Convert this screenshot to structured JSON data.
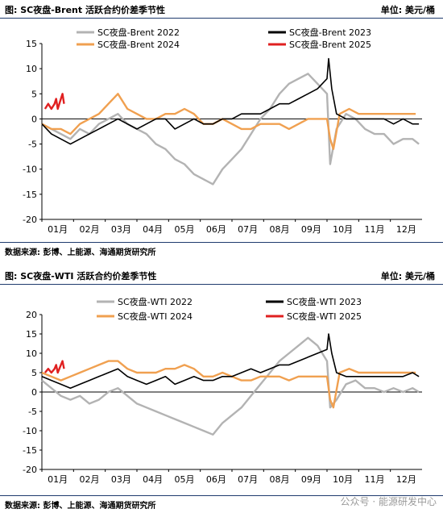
{
  "charts": [
    {
      "title": "图: SC夜盘-Brent 活跃合约价差季节性",
      "unit": "单位: 美元/桶",
      "source": "数据来源: 彭博、上能源、海通期货研究所"
    },
    {
      "title": "图: SC夜盘-WTI 活跃合约价差季节性",
      "unit": "单位: 美元/桶",
      "source": "数据来源: 彭博、上能源、海通期货研究所"
    }
  ],
  "watermark": "公众号 · 能源研发中心",
  "chart_data": [
    {
      "type": "line",
      "title": "",
      "x_labels": [
        "01月",
        "02月",
        "03月",
        "04月",
        "05月",
        "06月",
        "07月",
        "08月",
        "09月",
        "10月",
        "11月",
        "12月"
      ],
      "ylim": [
        -20,
        15
      ],
      "yticks": [
        -20,
        -15,
        -10,
        -5,
        0,
        5,
        10,
        15
      ],
      "legend": "top",
      "series": [
        {
          "name": "SC夜盘-Brent 2022",
          "color": "#b3b3b3",
          "x": [
            0,
            0.3,
            0.6,
            0.9,
            1.2,
            1.5,
            1.8,
            2.1,
            2.4,
            2.7,
            3,
            3.3,
            3.6,
            3.9,
            4.2,
            4.5,
            4.8,
            5.1,
            5.4,
            5.7,
            6,
            6.3,
            6.6,
            6.9,
            7.2,
            7.5,
            7.8,
            8.1,
            8.4,
            8.7,
            9,
            9.1,
            9.3,
            9.6,
            9.9,
            10.2,
            10.5,
            10.8,
            11.1,
            11.4,
            11.7,
            11.9
          ],
          "y": [
            -1,
            -2,
            -3,
            -4,
            -2,
            -3,
            -1,
            0,
            1,
            -1,
            -2,
            -3,
            -5,
            -6,
            -8,
            -9,
            -11,
            -12,
            -13,
            -10,
            -8,
            -6,
            -3,
            0,
            2,
            5,
            7,
            8,
            9,
            7,
            5,
            -9,
            -2,
            1,
            0,
            -2,
            -3,
            -3,
            -5,
            -4,
            -4,
            -5
          ]
        },
        {
          "name": "SC夜盘-Brent 2023",
          "color": "#000000",
          "x": [
            0,
            0.3,
            0.6,
            0.9,
            1.2,
            1.5,
            1.8,
            2.1,
            2.4,
            2.7,
            3,
            3.3,
            3.6,
            3.9,
            4.2,
            4.5,
            4.8,
            5.1,
            5.4,
            5.7,
            6,
            6.3,
            6.6,
            6.9,
            7.2,
            7.5,
            7.8,
            8.1,
            8.4,
            8.7,
            9,
            9.05,
            9.15,
            9.3,
            9.6,
            9.9,
            10.2,
            10.5,
            10.8,
            11.1,
            11.4,
            11.7,
            11.9
          ],
          "y": [
            -1,
            -3,
            -4,
            -5,
            -4,
            -3,
            -2,
            -1,
            0,
            -1,
            -2,
            -1,
            0,
            0,
            -2,
            -1,
            0,
            -1,
            -1,
            0,
            0,
            1,
            1,
            1,
            2,
            3,
            3,
            4,
            5,
            6,
            8,
            12,
            6,
            1,
            0,
            0,
            0,
            0,
            0,
            -1,
            0,
            -1,
            -1
          ]
        },
        {
          "name": "SC夜盘-Brent 2024",
          "color": "#f0a050",
          "x": [
            0,
            0.3,
            0.6,
            0.9,
            1.2,
            1.5,
            1.8,
            2.1,
            2.4,
            2.7,
            3,
            3.3,
            3.6,
            3.9,
            4.2,
            4.5,
            4.8,
            5.1,
            5.4,
            5.7,
            6,
            6.3,
            6.6,
            6.9,
            7.2,
            7.5,
            7.8,
            8.1,
            8.4,
            8.7,
            9,
            9.1,
            9.2,
            9.4,
            9.7,
            10,
            10.3,
            10.6,
            10.9,
            11.2,
            11.5,
            11.8
          ],
          "y": [
            -1,
            -2,
            -2,
            -3,
            -1,
            0,
            1,
            3,
            5,
            2,
            1,
            0,
            0,
            1,
            1,
            2,
            1,
            -1,
            -1,
            0,
            -1,
            -2,
            -2,
            -1,
            -1,
            -1,
            -2,
            -1,
            0,
            0,
            0,
            -4,
            -6,
            1,
            2,
            1,
            1,
            1,
            1,
            1,
            1,
            1
          ]
        },
        {
          "name": "SC夜盘-Brent 2025",
          "color": "#e02020",
          "x": [
            0.1,
            0.2,
            0.3,
            0.4,
            0.45,
            0.5,
            0.6,
            0.65,
            0.7
          ],
          "y": [
            2,
            3,
            2,
            3,
            4,
            2,
            4,
            5,
            3
          ]
        }
      ]
    },
    {
      "type": "line",
      "title": "",
      "x_labels": [
        "01月",
        "02月",
        "03月",
        "04月",
        "05月",
        "06月",
        "07月",
        "08月",
        "09月",
        "10月",
        "11月",
        "12月"
      ],
      "ylim": [
        -20,
        20
      ],
      "yticks": [
        -20,
        -15,
        -10,
        -5,
        0,
        5,
        10,
        15,
        20
      ],
      "legend": "top",
      "series": [
        {
          "name": "SC夜盘-WTI 2022",
          "color": "#b3b3b3",
          "x": [
            0,
            0.3,
            0.6,
            0.9,
            1.2,
            1.5,
            1.8,
            2.1,
            2.4,
            2.7,
            3,
            3.3,
            3.6,
            3.9,
            4.2,
            4.5,
            4.8,
            5.1,
            5.4,
            5.7,
            6,
            6.3,
            6.6,
            6.9,
            7.2,
            7.5,
            7.8,
            8.1,
            8.4,
            8.7,
            9,
            9.1,
            9.3,
            9.6,
            9.9,
            10.2,
            10.5,
            10.8,
            11.1,
            11.4,
            11.7,
            11.9
          ],
          "y": [
            3,
            1,
            -1,
            -2,
            -1,
            -3,
            -2,
            0,
            1,
            -1,
            -3,
            -4,
            -5,
            -6,
            -7,
            -8,
            -9,
            -10,
            -11,
            -8,
            -6,
            -4,
            -1,
            2,
            5,
            8,
            10,
            12,
            14,
            12,
            8,
            -4,
            -2,
            2,
            3,
            1,
            1,
            0,
            1,
            0,
            1,
            0
          ]
        },
        {
          "name": "SC夜盘-WTI 2023",
          "color": "#000000",
          "x": [
            0,
            0.3,
            0.6,
            0.9,
            1.2,
            1.5,
            1.8,
            2.1,
            2.4,
            2.7,
            3,
            3.3,
            3.6,
            3.9,
            4.2,
            4.5,
            4.8,
            5.1,
            5.4,
            5.7,
            6,
            6.3,
            6.6,
            6.9,
            7.2,
            7.5,
            7.8,
            8.1,
            8.4,
            8.7,
            9,
            9.05,
            9.15,
            9.3,
            9.6,
            9.9,
            10.2,
            10.5,
            10.8,
            11.1,
            11.4,
            11.7,
            11.9
          ],
          "y": [
            4,
            3,
            2,
            1,
            2,
            3,
            4,
            5,
            6,
            4,
            3,
            2,
            3,
            4,
            2,
            3,
            4,
            3,
            3,
            4,
            4,
            5,
            6,
            5,
            6,
            7,
            7,
            8,
            9,
            10,
            11,
            15,
            10,
            5,
            4,
            4,
            4,
            4,
            4,
            4,
            4,
            5,
            4
          ]
        },
        {
          "name": "SC夜盘-WTI 2024",
          "color": "#f0a050",
          "x": [
            0,
            0.3,
            0.6,
            0.9,
            1.2,
            1.5,
            1.8,
            2.1,
            2.4,
            2.7,
            3,
            3.3,
            3.6,
            3.9,
            4.2,
            4.5,
            4.8,
            5.1,
            5.4,
            5.7,
            6,
            6.3,
            6.6,
            6.9,
            7.2,
            7.5,
            7.8,
            8.1,
            8.4,
            8.7,
            9,
            9.1,
            9.2,
            9.4,
            9.7,
            10,
            10.3,
            10.6,
            10.9,
            11.2,
            11.5,
            11.8
          ],
          "y": [
            5,
            4,
            3,
            4,
            5,
            6,
            7,
            8,
            8,
            6,
            5,
            5,
            5,
            6,
            6,
            7,
            6,
            4,
            4,
            5,
            4,
            3,
            3,
            4,
            4,
            4,
            3,
            4,
            4,
            4,
            4,
            -2,
            -4,
            5,
            6,
            5,
            5,
            5,
            5,
            5,
            5,
            5
          ]
        },
        {
          "name": "SC夜盘-WTI 2025",
          "color": "#e02020",
          "x": [
            0.1,
            0.2,
            0.3,
            0.4,
            0.45,
            0.5,
            0.6,
            0.65,
            0.7
          ],
          "y": [
            5,
            6,
            5,
            6,
            7,
            5,
            7,
            8,
            6
          ]
        }
      ]
    }
  ]
}
